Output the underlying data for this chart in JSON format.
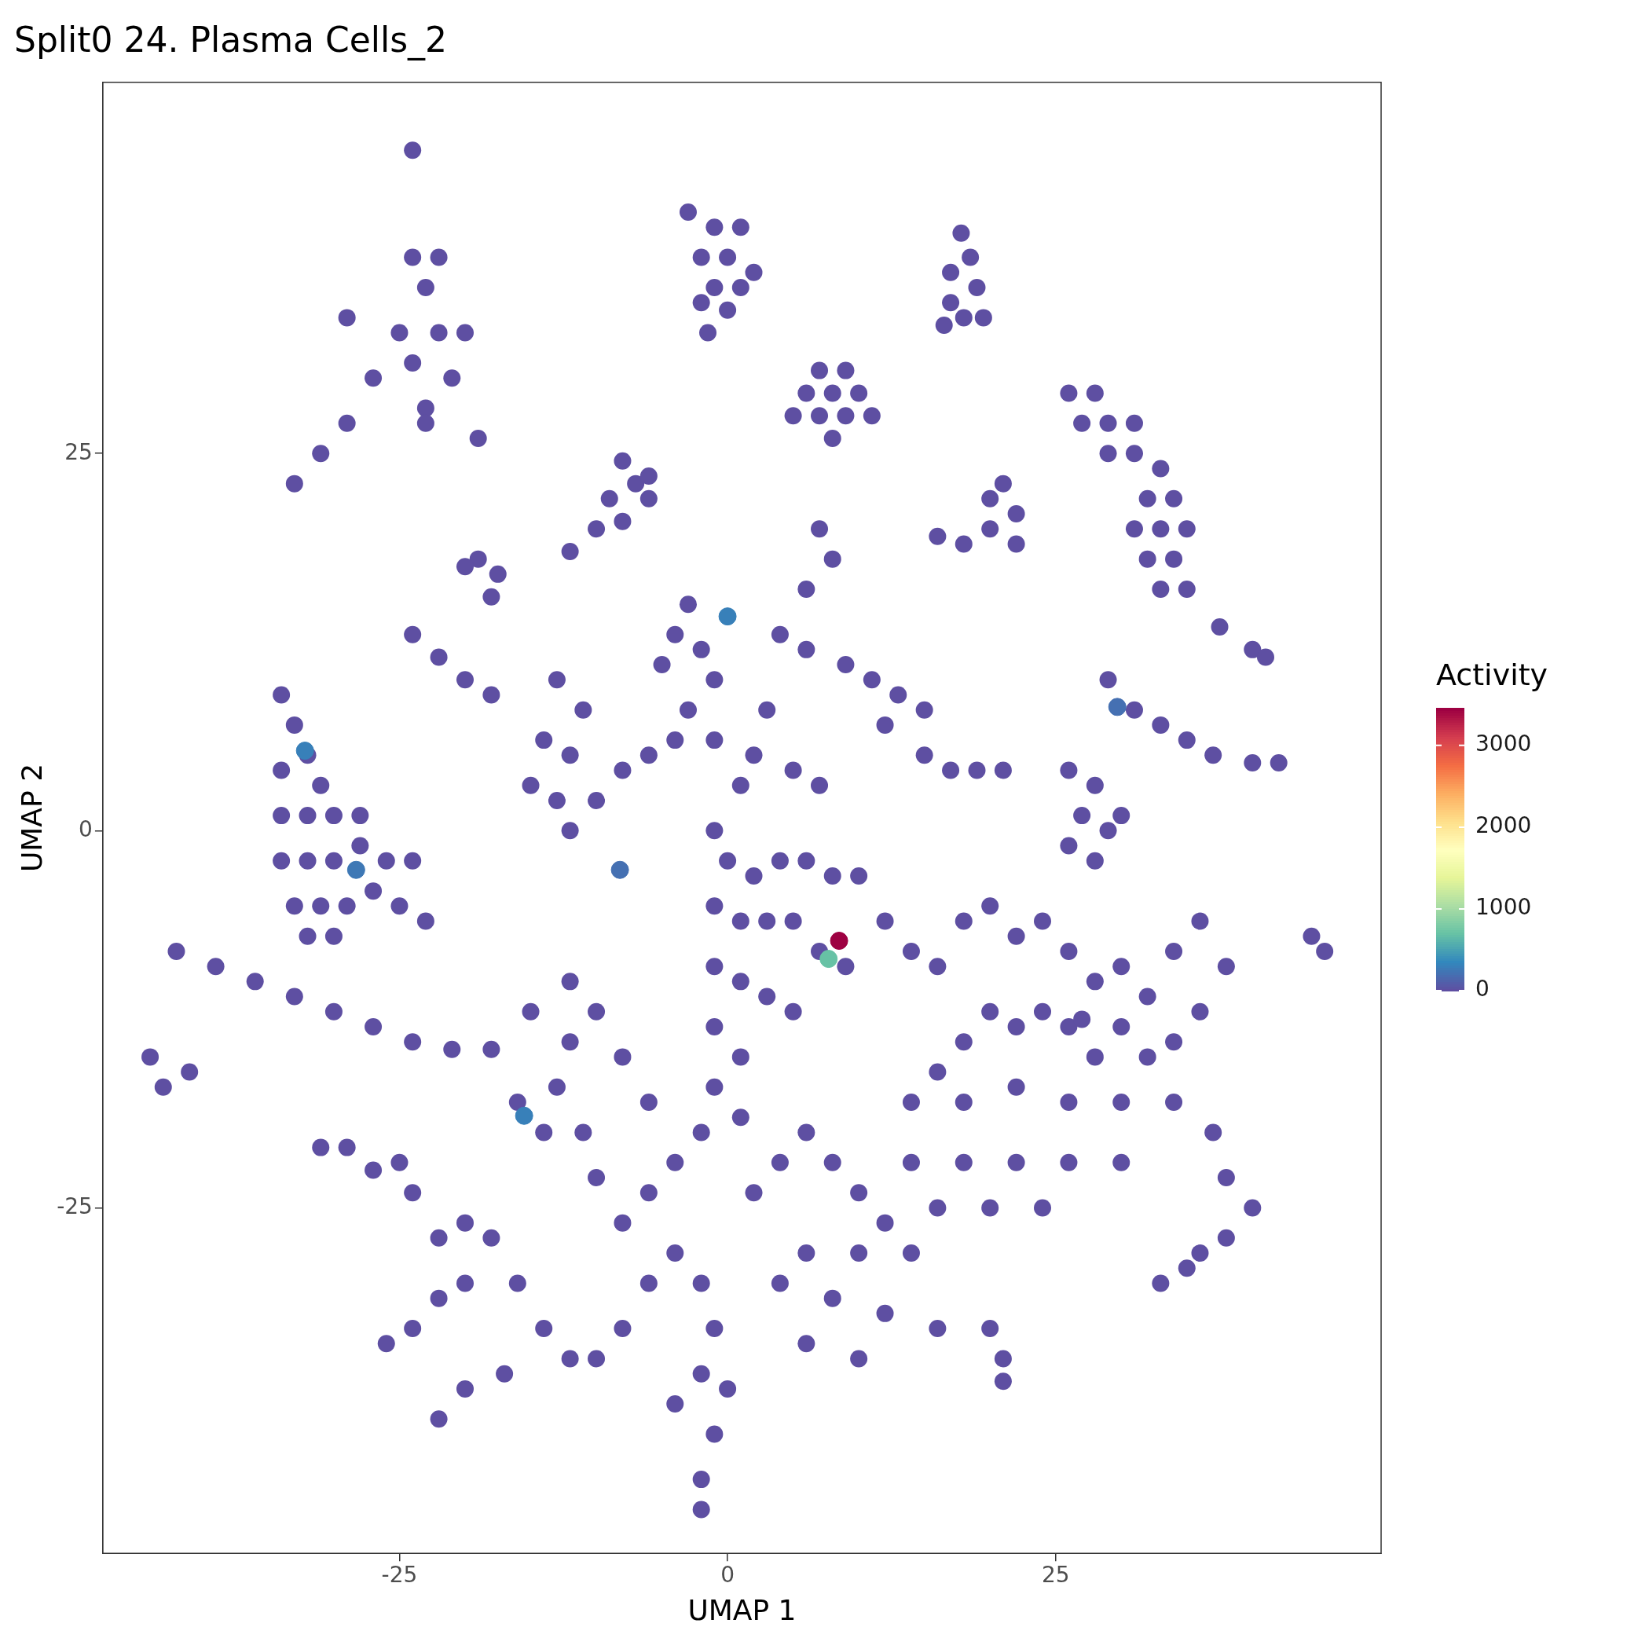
{
  "chart_data": {
    "type": "scatter",
    "title": "Split0 24. Plasma Cells_2",
    "xlabel": "UMAP 1",
    "ylabel": "UMAP 2",
    "clabel": "Activity",
    "xlim": [
      -47.6,
      49.8
    ],
    "ylim": [
      -47.9,
      49.6
    ],
    "xticks": [
      -25,
      0,
      25
    ],
    "yticks": [
      -25,
      0,
      25
    ],
    "clim": [
      0,
      3460
    ],
    "cticks": [
      0,
      1000,
      2000,
      3000
    ],
    "marker": "circle",
    "legend": false,
    "grid": false,
    "series": [
      {
        "color": "#5e4fa2",
        "x": [
          -24,
          -23,
          -22,
          -24,
          -21,
          -23,
          -25,
          -20,
          -22,
          -27,
          -29,
          -31,
          -33,
          -23,
          -19,
          -29,
          -24,
          -1,
          1,
          -2,
          0,
          2,
          -1,
          1,
          -3,
          -2,
          0,
          -1.5,
          17.8,
          18.5,
          17,
          19,
          17,
          18,
          16.5,
          19.5,
          7,
          9,
          6,
          8,
          10,
          5,
          7,
          9,
          11,
          8,
          26,
          28,
          27,
          29,
          31,
          29,
          31,
          33,
          32,
          34,
          31,
          33,
          35,
          32,
          34,
          33,
          35,
          -8,
          -7,
          -9,
          -6,
          -8,
          -10,
          -12,
          -6,
          21,
          22,
          20,
          18,
          16,
          22,
          20,
          -19,
          -17.5,
          -18,
          -20,
          -24,
          -22,
          -20,
          -18,
          37.5,
          40,
          41,
          -34,
          -33,
          -32,
          -34,
          -31,
          -34,
          -32,
          -30,
          -28,
          -34,
          -32,
          -30,
          -28,
          -26,
          -24,
          -33,
          -31,
          -29,
          -27,
          -25,
          -23,
          -32,
          -30,
          -42,
          -39,
          -36,
          -33,
          -30,
          -27,
          -24,
          -21,
          -18,
          -44,
          -43,
          -41,
          -31,
          -29,
          -27,
          -25,
          -3,
          -4,
          -5,
          -2,
          -1,
          -3,
          -4,
          -6,
          -8,
          -10,
          -12,
          -13,
          -11,
          -14,
          -12,
          -15,
          -13,
          7,
          8,
          6,
          4,
          6,
          9,
          11,
          13,
          15,
          12,
          15,
          17,
          19,
          21,
          3,
          2,
          5,
          7,
          -1,
          1,
          -1,
          0,
          2,
          4,
          6,
          8,
          10,
          -1,
          1,
          3,
          5,
          7,
          9,
          -1,
          1,
          3,
          5,
          -1,
          1,
          -1,
          1,
          12,
          14,
          16,
          18,
          20,
          22,
          24,
          26,
          28,
          30,
          32,
          34,
          36,
          38,
          36,
          34,
          32,
          30,
          28,
          26,
          24,
          22,
          20,
          18,
          16,
          14,
          18,
          22,
          26,
          30,
          34,
          37,
          38,
          40,
          38,
          36,
          33,
          35,
          30,
          26,
          22,
          18,
          14,
          20,
          16,
          24,
          27,
          26,
          28,
          27,
          29,
          28,
          26,
          30,
          29,
          31,
          33,
          35,
          37,
          40,
          42,
          44.5,
          45.5,
          -12,
          -13,
          -11,
          -10,
          -8,
          -6,
          -4,
          -2,
          -4,
          -2,
          -1,
          -2,
          -1,
          -2,
          0,
          -6,
          -8,
          -10,
          -12,
          -14,
          -16,
          -18,
          -20,
          -22,
          -24,
          -22,
          -24,
          -26,
          -20,
          -14,
          -16,
          -15,
          -12,
          -10,
          -8,
          -6,
          2,
          4,
          6,
          8,
          10,
          12,
          14,
          10,
          6,
          4,
          8,
          12,
          16,
          20,
          6,
          10,
          -4,
          -2,
          -20,
          -22,
          -17,
          21,
          21
        ],
        "values": [
          45.1,
          36,
          33,
          31,
          30,
          28,
          33,
          33,
          38,
          30,
          27,
          25,
          23,
          27,
          26,
          34,
          38,
          40,
          40,
          38,
          38,
          37,
          36,
          36,
          41,
          35,
          34.5,
          33,
          39.6,
          38,
          37,
          36,
          35,
          34,
          33.5,
          34,
          30.5,
          30.5,
          29,
          29,
          29,
          27.5,
          27.5,
          27.5,
          27.5,
          26,
          29,
          29,
          27,
          27,
          27,
          25,
          25,
          24,
          22,
          22,
          20,
          20,
          20,
          18,
          18,
          16,
          16,
          24.5,
          23,
          22,
          22,
          20.5,
          20,
          18.5,
          23.5,
          23,
          21,
          20,
          19,
          19.5,
          19,
          22,
          18,
          17,
          15.5,
          17.5,
          13,
          11.5,
          10,
          9,
          13.5,
          12,
          11.5,
          9,
          7,
          5,
          4,
          3,
          1,
          1,
          1,
          1,
          -2,
          -2,
          -2,
          -1,
          -2,
          -2,
          -5,
          -5,
          -5,
          -4,
          -5,
          -6,
          -7,
          -7,
          -8,
          -9,
          -10,
          -11,
          -12,
          -13,
          -14,
          -14.5,
          -14.5,
          -15,
          -17,
          -16,
          -21,
          -21,
          -22.5,
          -22,
          15,
          13,
          11,
          12,
          10,
          8,
          6,
          5,
          4,
          2,
          0,
          10,
          8,
          6,
          5,
          3,
          2,
          20,
          18,
          16,
          13,
          12,
          11,
          10,
          9,
          8,
          7,
          5,
          4,
          4,
          4,
          8,
          5,
          4,
          3,
          6,
          3,
          0,
          -2,
          -3,
          -2,
          -2,
          -3,
          -3,
          -5,
          -6,
          -6,
          -6,
          -8,
          -9,
          -9,
          -10,
          -11,
          -12,
          -13,
          -15,
          -17,
          -19,
          -6,
          -8,
          -9,
          -6,
          -5,
          -7,
          -6,
          -8,
          -10,
          -9,
          -11,
          -8,
          -6,
          -9,
          -12,
          -14,
          -15,
          -13,
          -15,
          -13,
          -12,
          -13,
          -12,
          -14,
          -16,
          -18,
          -18,
          -17,
          -18,
          -18,
          -18,
          -20,
          -23,
          -25,
          -27,
          -28,
          -30,
          -29,
          -22,
          -22,
          -22,
          -22,
          -22,
          -25,
          -25,
          -25,
          -12.5,
          4,
          3,
          1,
          0,
          -2,
          -1,
          1,
          10,
          8,
          7,
          6,
          5,
          4.5,
          4.5,
          -7,
          -8,
          -14,
          -17,
          -20,
          -23,
          -26,
          -24,
          -22,
          -20,
          -28,
          -30,
          -33,
          -36,
          -40,
          -43,
          -37,
          -30,
          -33,
          -35,
          -35,
          -33,
          -30,
          -27,
          -26,
          -27,
          -24,
          -31,
          -33,
          -34,
          -30,
          -20,
          -18,
          -12,
          -10,
          -12,
          -15,
          -18,
          -24,
          -22,
          -20,
          -22,
          -24,
          -26,
          -28,
          -28,
          -28,
          -30,
          -31,
          -32,
          -33,
          -33,
          -34,
          -35,
          -38,
          -45,
          -37,
          -39,
          -36,
          -35,
          -36.5
        ]
      },
      {
        "x": [
          -28.3,
          -32.2,
          0,
          -15.5,
          29.7,
          -8.2,
          7.7,
          8.5
        ],
        "values": [
          -2.6,
          5.3,
          14.2,
          -18.9,
          8.2,
          -2.6,
          -8.5,
          -7.3
        ],
        "cvalues": [
          250,
          300,
          300,
          300,
          200,
          200,
          700,
          3460
        ],
        "colors": [
          "#3e78b5",
          "#3880b9",
          "#3880b9",
          "#3880b9",
          "#4570b2",
          "#4570b2",
          "#67c2a5",
          "#9e0142"
        ]
      }
    ]
  }
}
